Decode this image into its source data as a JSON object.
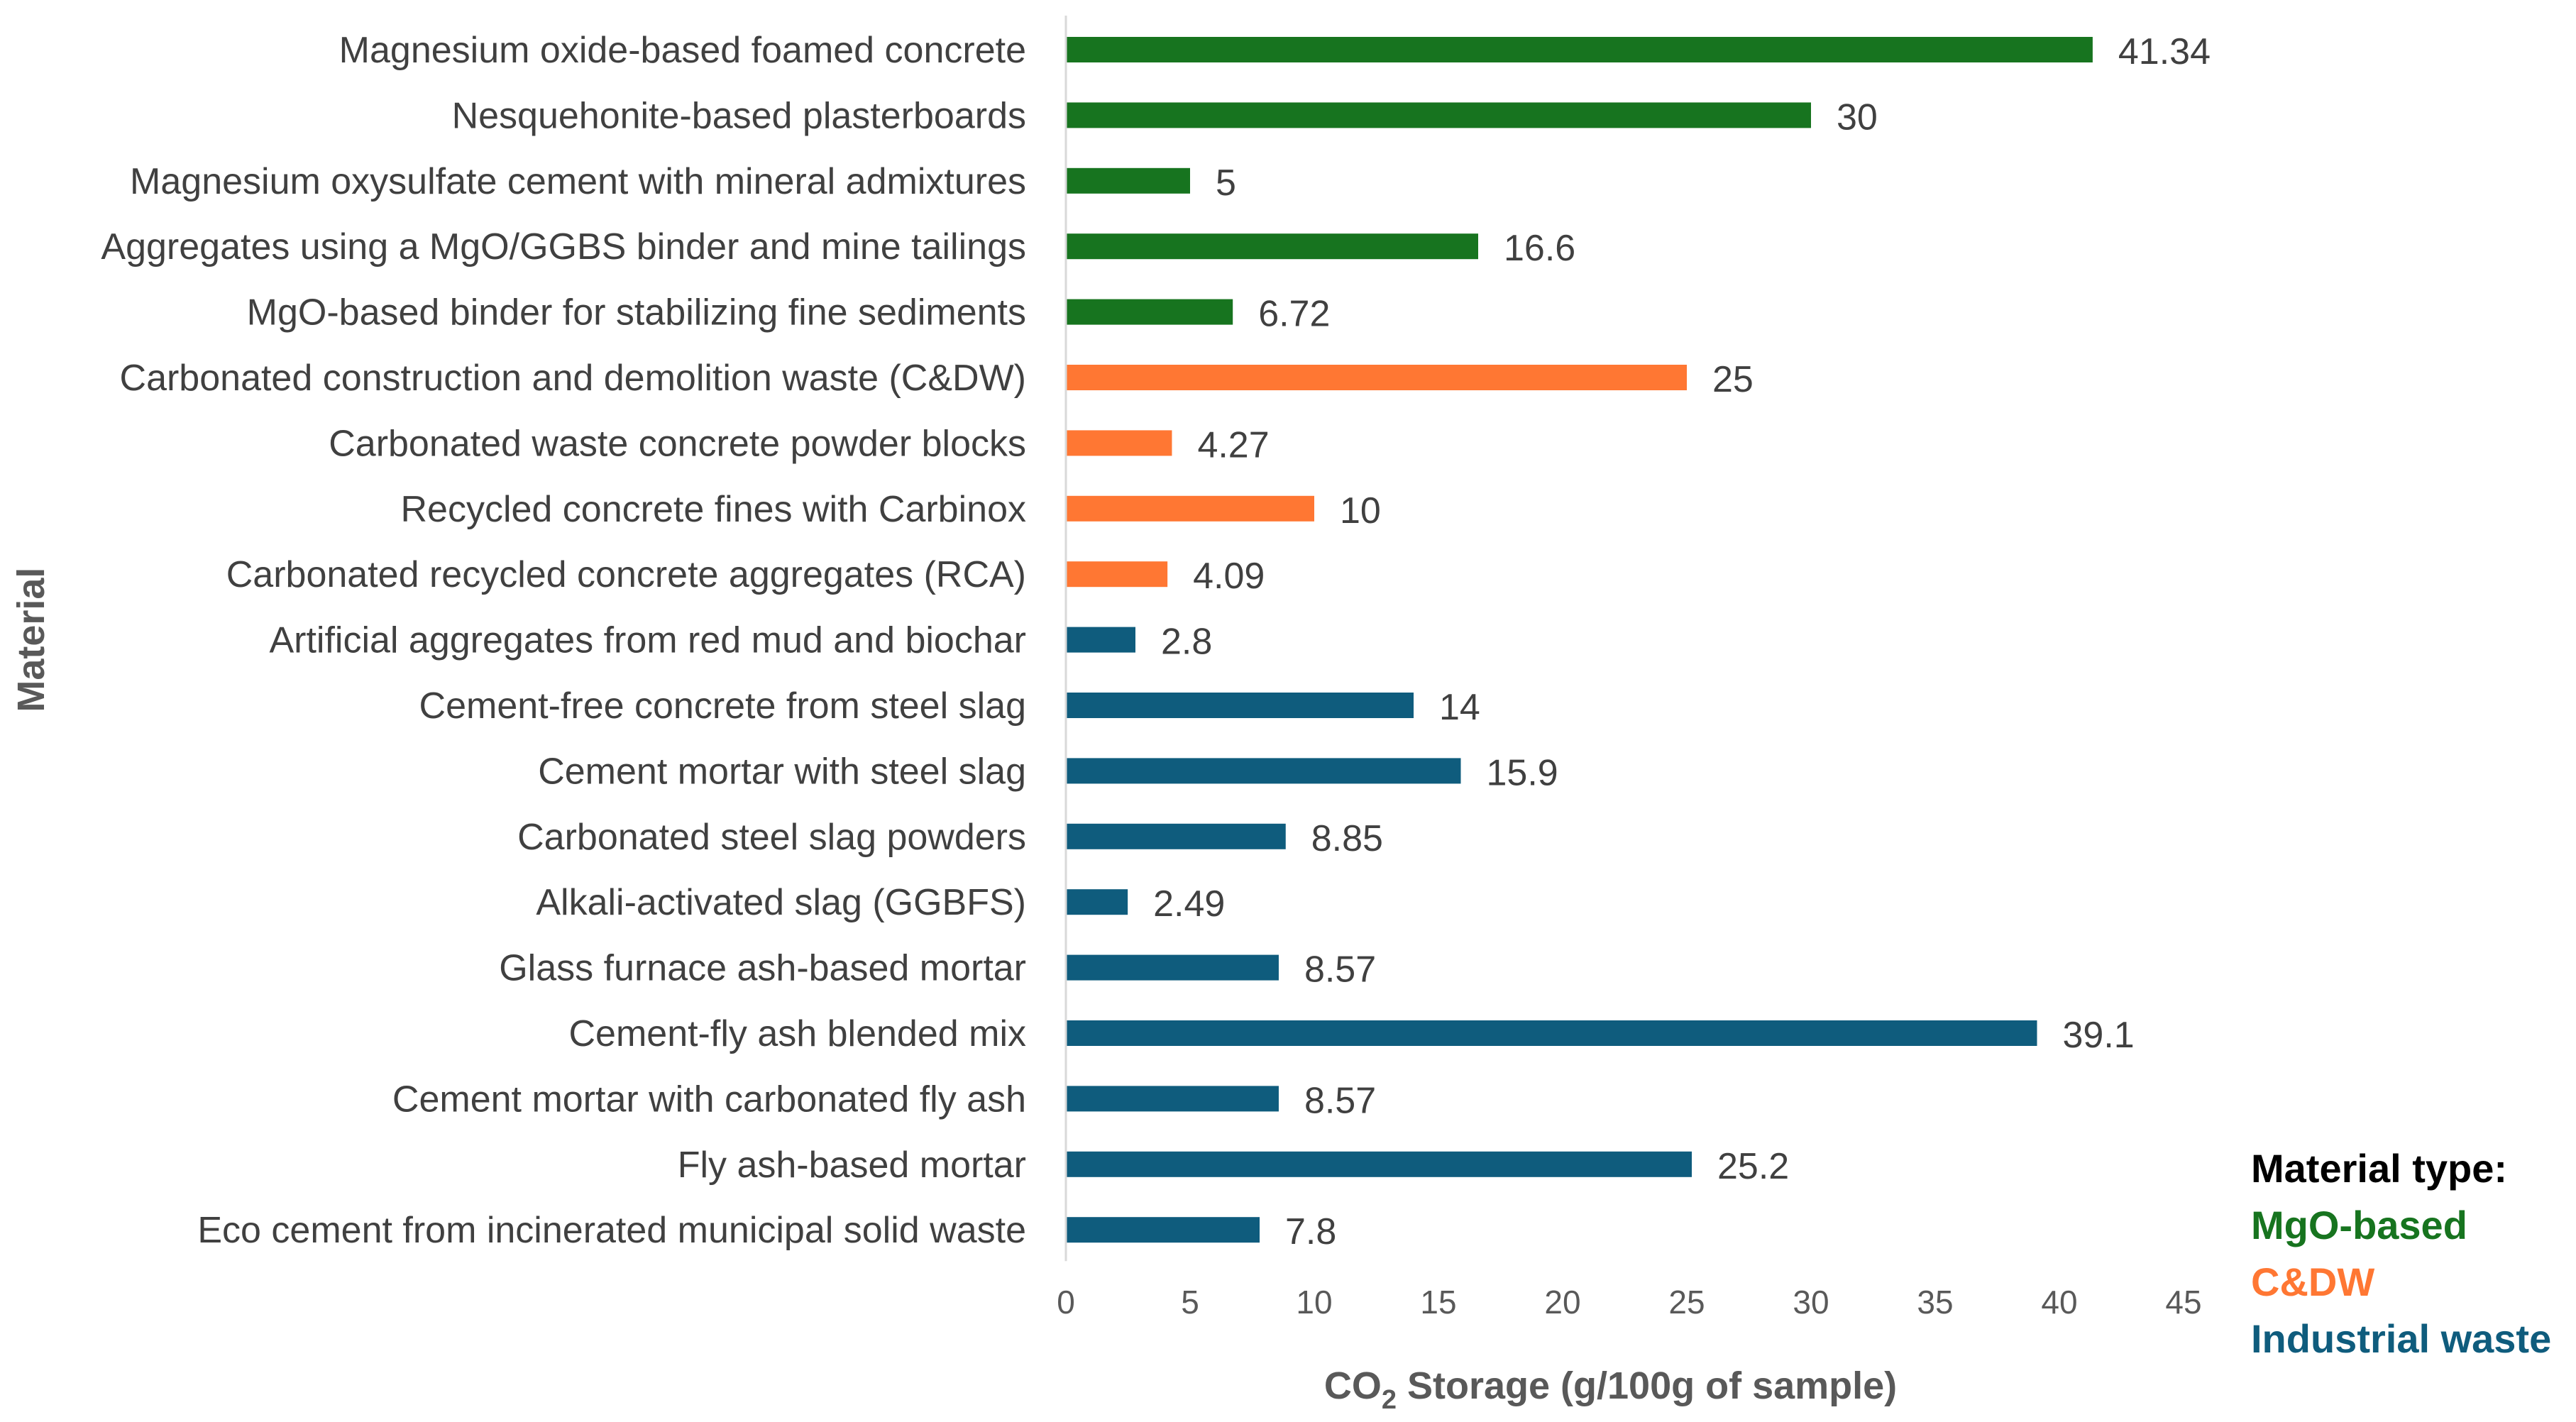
{
  "chart_data": {
    "type": "bar",
    "orientation": "horizontal",
    "title": "",
    "xlabel_prefix": "CO",
    "xlabel_sub": "2",
    "xlabel_suffix": " Storage (g/100g of sample)",
    "ylabel": "Material",
    "xlim": [
      0,
      45
    ],
    "xticks": [
      0,
      5,
      10,
      15,
      20,
      25,
      30,
      35,
      40,
      45
    ],
    "grid": false,
    "legend_title": "Material type:",
    "legend_position": "bottom-right",
    "groups": [
      {
        "name": "MgO-based",
        "color": "#17741f"
      },
      {
        "name": "C&DW",
        "color": "#ff7733"
      },
      {
        "name": "Industrial waste",
        "color": "#0f5c7d"
      }
    ],
    "bars": [
      {
        "category": "Magnesium oxide-based foamed concrete",
        "value": 41.34,
        "label": "41.34",
        "group": 0
      },
      {
        "category": "Nesquehonite-based plasterboards",
        "value": 30,
        "label": "30",
        "group": 0
      },
      {
        "category": "Magnesium oxysulfate cement with  mineral admixtures",
        "value": 5,
        "label": "5",
        "group": 0
      },
      {
        "category": "Aggregates using a MgO/GGBS binder and mine tailings",
        "value": 16.6,
        "label": "16.6",
        "group": 0
      },
      {
        "category": "MgO-based binder for stabilizing fine sediments",
        "value": 6.72,
        "label": "6.72",
        "group": 0
      },
      {
        "category": "Carbonated construction and demolition waste (C&DW)",
        "value": 25,
        "label": "25",
        "group": 1
      },
      {
        "category": "Carbonated waste concrete powder blocks",
        "value": 4.27,
        "label": "4.27",
        "group": 1
      },
      {
        "category": "Recycled concrete fines with Carbinox",
        "value": 10,
        "label": "10",
        "group": 1
      },
      {
        "category": "Carbonated recycled concrete aggregates (RCA)",
        "value": 4.09,
        "label": "4.09",
        "group": 1
      },
      {
        "category": "Artificial aggregates from red mud and biochar",
        "value": 2.8,
        "label": "2.8",
        "group": 2
      },
      {
        "category": "Cement-free concrete from steel slag",
        "value": 14,
        "label": "14",
        "group": 2
      },
      {
        "category": "Cement mortar with steel slag",
        "value": 15.9,
        "label": "15.9",
        "group": 2
      },
      {
        "category": "Carbonated steel slag powders",
        "value": 8.85,
        "label": "8.85",
        "group": 2
      },
      {
        "category": "Alkali-activated slag (GGBFS)",
        "value": 2.49,
        "label": "2.49",
        "group": 2
      },
      {
        "category": "Glass furnace ash-based mortar",
        "value": 8.57,
        "label": "8.57",
        "group": 2
      },
      {
        "category": "Cement-fly ash blended mix",
        "value": 39.1,
        "label": "39.1",
        "group": 2
      },
      {
        "category": "Cement mortar with carbonated fly ash",
        "value": 8.57,
        "label": "8.57",
        "group": 2
      },
      {
        "category": "Fly ash-based mortar",
        "value": 25.2,
        "label": "25.2",
        "group": 2
      },
      {
        "category": "Eco cement from incinerated municipal solid waste",
        "value": 7.8,
        "label": "7.8",
        "group": 2
      }
    ]
  }
}
